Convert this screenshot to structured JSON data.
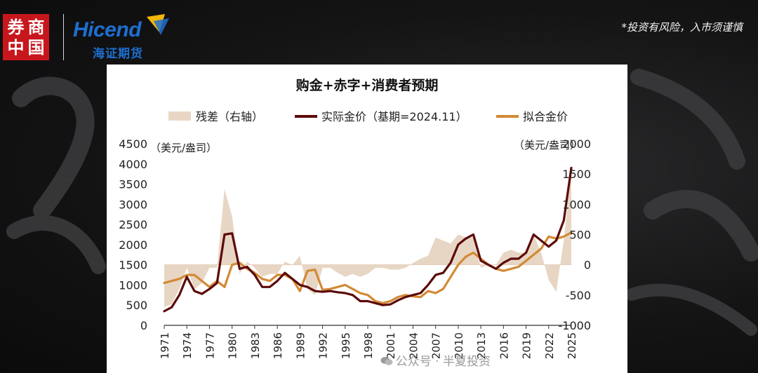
{
  "header": {
    "seal_chars": [
      "券",
      "商",
      "中",
      "国"
    ],
    "brand_en": "Hicend",
    "brand_cn": "海证期货",
    "disclaimer": "*投资有风险，入市须谨慎"
  },
  "watermark": "公众号 · 半夏投资",
  "colors": {
    "residual": "#e8d6c4",
    "actual": "#5c0a0a",
    "fitted": "#d28a35"
  },
  "chart_data": {
    "type": "line",
    "title": "购金+赤字+消费者预期",
    "legend": [
      {
        "key": "residual",
        "label": "残差（右轴）"
      },
      {
        "key": "actual",
        "label": "实际金价（基期=2024.11）"
      },
      {
        "key": "fitted",
        "label": "拟合金价"
      }
    ],
    "legend_position": "top",
    "ylabel_left": "（美元/盎司）",
    "ylabel_right": "（美元/盎司）",
    "ylim_left": [
      0,
      4500
    ],
    "ylim_right": [
      -1000,
      2000
    ],
    "yticks_left": [
      0,
      500,
      1000,
      1500,
      2000,
      2500,
      3000,
      3500,
      4000,
      4500
    ],
    "yticks_right": [
      -1000,
      -500,
      0,
      500,
      1000,
      1500,
      2000
    ],
    "xlim": [
      1971,
      2025
    ],
    "xticks": [
      1971,
      1974,
      1977,
      1980,
      1983,
      1986,
      1989,
      1992,
      1995,
      1998,
      2001,
      2004,
      2007,
      2010,
      2013,
      2016,
      2019,
      2022,
      2025
    ],
    "grid": false,
    "series": [
      {
        "key": "actual",
        "axis": "left",
        "x": [
          1971,
          1972,
          1973,
          1974,
          1975,
          1976,
          1977,
          1978,
          1979,
          1980,
          1981,
          1982,
          1983,
          1984,
          1985,
          1986,
          1987,
          1988,
          1989,
          1990,
          1991,
          1992,
          1993,
          1994,
          1995,
          1996,
          1997,
          1998,
          1999,
          2000,
          2001,
          2002,
          2003,
          2004,
          2005,
          2006,
          2007,
          2008,
          2009,
          2010,
          2011,
          2012,
          2013,
          2014,
          2015,
          2016,
          2017,
          2018,
          2019,
          2020,
          2021,
          2022,
          2023,
          2024,
          2025
        ],
        "y": [
          350,
          450,
          750,
          1200,
          850,
          780,
          900,
          1050,
          2250,
          2280,
          1400,
          1450,
          1250,
          950,
          950,
          1100,
          1300,
          1150,
          1000,
          950,
          850,
          830,
          850,
          820,
          800,
          750,
          600,
          600,
          550,
          500,
          520,
          620,
          700,
          750,
          800,
          1000,
          1250,
          1300,
          1550,
          2000,
          2150,
          2250,
          1600,
          1500,
          1400,
          1550,
          1650,
          1650,
          1800,
          2250,
          2100,
          1950,
          2100,
          2600,
          3900
        ]
      },
      {
        "key": "fitted",
        "axis": "left",
        "x": [
          1971,
          1972,
          1973,
          1974,
          1975,
          1976,
          1977,
          1978,
          1979,
          1980,
          1981,
          1982,
          1983,
          1984,
          1985,
          1986,
          1987,
          1988,
          1989,
          1990,
          1991,
          1992,
          1993,
          1994,
          1995,
          1996,
          1997,
          1998,
          1999,
          2000,
          2001,
          2002,
          2003,
          2004,
          2005,
          2006,
          2007,
          2008,
          2009,
          2010,
          2011,
          2012,
          2013,
          2014,
          2015,
          2016,
          2017,
          2018,
          2019,
          2020,
          2021,
          2022,
          2023,
          2024,
          2025
        ],
        "y": [
          1050,
          1100,
          1150,
          1250,
          1250,
          1100,
          950,
          1100,
          950,
          1500,
          1550,
          1400,
          1300,
          1150,
          1100,
          1250,
          1250,
          1150,
          850,
          1350,
          1380,
          880,
          900,
          950,
          1000,
          900,
          800,
          750,
          600,
          550,
          600,
          700,
          750,
          720,
          700,
          850,
          800,
          900,
          1200,
          1500,
          1700,
          1800,
          1650,
          1500,
          1400,
          1350,
          1400,
          1450,
          1600,
          1750,
          1900,
          2200,
          2150,
          2200,
          2300
        ]
      },
      {
        "key": "residual",
        "axis": "right",
        "kind": "area",
        "x": [
          1971,
          1972,
          1973,
          1974,
          1975,
          1976,
          1977,
          1978,
          1979,
          1980,
          1981,
          1982,
          1983,
          1984,
          1985,
          1986,
          1987,
          1988,
          1989,
          1990,
          1991,
          1992,
          1993,
          1994,
          1995,
          1996,
          1997,
          1998,
          1999,
          2000,
          2001,
          2002,
          2003,
          2004,
          2005,
          2006,
          2007,
          2008,
          2009,
          2010,
          2011,
          2012,
          2013,
          2014,
          2015,
          2016,
          2017,
          2018,
          2019,
          2020,
          2021,
          2022,
          2023,
          2024,
          2025
        ],
        "y": [
          -700,
          -650,
          -400,
          -50,
          -400,
          -300,
          -50,
          -50,
          1250,
          800,
          -150,
          50,
          -50,
          -200,
          -150,
          -150,
          50,
          0,
          150,
          -400,
          -500,
          -50,
          -50,
          -130,
          -200,
          -150,
          -200,
          -150,
          -50,
          -50,
          -80,
          -80,
          -50,
          30,
          100,
          150,
          450,
          400,
          350,
          500,
          450,
          450,
          -50,
          0,
          0,
          200,
          250,
          200,
          200,
          500,
          200,
          -250,
          -450,
          400,
          1600
        ]
      }
    ]
  }
}
